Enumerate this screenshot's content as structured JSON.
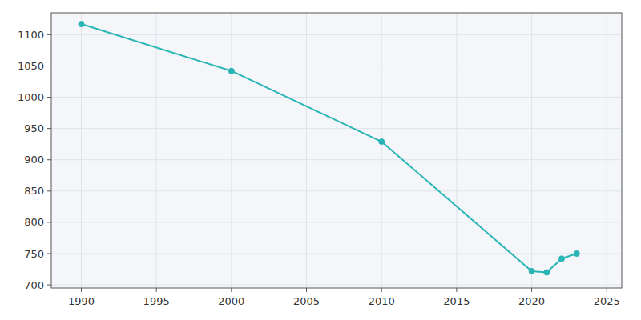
{
  "chart_data": {
    "type": "line",
    "x": [
      1990,
      2000,
      2010,
      2020,
      2021,
      2022,
      2023
    ],
    "values": [
      1117,
      1042,
      929,
      722,
      720,
      742,
      750
    ],
    "color": "#2ab5b5",
    "marker": "circle",
    "xlim": [
      1988,
      2026
    ],
    "ylim": [
      695,
      1135
    ],
    "xticks": [
      1990,
      1995,
      2000,
      2005,
      2010,
      2015,
      2020,
      2025
    ],
    "yticks": [
      700,
      750,
      800,
      850,
      900,
      950,
      1000,
      1050,
      1100
    ],
    "grid": true
  }
}
